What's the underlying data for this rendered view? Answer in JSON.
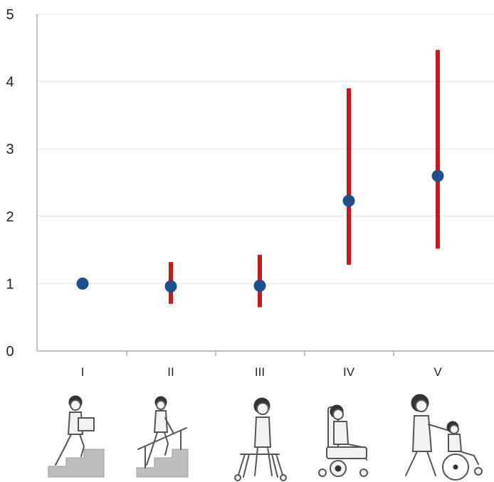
{
  "chart_data": {
    "type": "scatter",
    "categories": [
      "I",
      "II",
      "III",
      "IV",
      "V"
    ],
    "series": [
      {
        "values": [
          1.0,
          0.96,
          0.97,
          2.23,
          2.6
        ],
        "error_low": [
          null,
          0.7,
          0.65,
          1.28,
          1.52
        ],
        "error_high": [
          null,
          1.32,
          1.43,
          3.9,
          4.47
        ]
      }
    ],
    "ylim": [
      0,
      5
    ],
    "yticks": [
      "0",
      "1",
      "2",
      "3",
      "4",
      "5"
    ],
    "grid": true,
    "marker_color": "#1f4e8c",
    "errorbar_color": "#c41a1a",
    "illustrations": [
      "child-carrying-box-on-stairs-icon",
      "child-climbing-stairs-with-railing-icon",
      "child-with-walker-icon",
      "child-in-powered-wheelchair-icon",
      "child-in-wheelchair-pushed-by-adult-icon"
    ]
  }
}
